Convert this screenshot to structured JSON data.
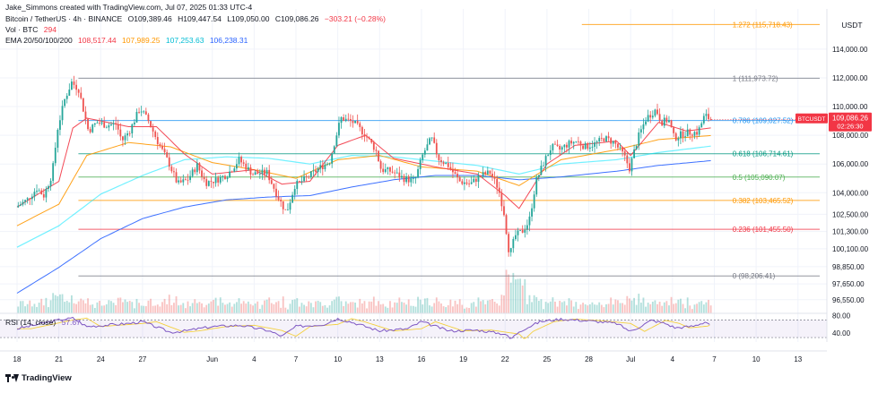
{
  "attribution": "Jake_Simmons created with TradingView.com, Jul 07, 2025 01:33 UTC-4",
  "header": {
    "symbol": "Bitcoin / TetherUS · 4h · BINANCE",
    "open": "O109,389.46",
    "high": "H109,447.54",
    "low": "L109,050.00",
    "close": "C109,086.26",
    "change": "−303.21 (−0.28%)",
    "volume_label": "Vol · BTC",
    "volume_value": "294",
    "ema_label": "EMA 20/50/100/200",
    "ema20": "108,517.44",
    "ema50": "107,989.25",
    "ema100": "107,253.63",
    "ema200": "106,238.31"
  },
  "colors": {
    "up": "#26a69a",
    "down": "#ef5350",
    "ema20": "#f23645",
    "ema50": "#ff9800",
    "ema100": "#00e5ff",
    "ema200": "#2962ff",
    "rsi": "#7e57c2",
    "rsi_ma": "#f4d03f",
    "price_badge": "#f23645"
  },
  "chart_data": [
    {
      "type": "candlestick",
      "title": "Bitcoin / TetherUS · 4h · BINANCE",
      "price_scale_currency": "USDT",
      "ylim": [
        95600,
        116800
      ],
      "y_ticks": [
        "114,000.00",
        "112,000.00",
        "110,000.00",
        "108,000.00",
        "106,000.00",
        "104,000.00",
        "102,500.00",
        "101,300.00",
        "100,100.00",
        "98,850.00",
        "97,650.00",
        "96,550.00"
      ],
      "y_tick_values": [
        114000,
        112000,
        110000,
        108000,
        106000,
        104000,
        102500,
        101300,
        100100,
        98850,
        97650,
        96550
      ],
      "x_tick_labels": [
        "18",
        "21",
        "24",
        "27",
        "Jun",
        "4",
        "7",
        "10",
        "13",
        "16",
        "19",
        "22",
        "25",
        "28",
        "Jul",
        "4",
        "7",
        "10",
        "13"
      ],
      "x_tick_days": [
        0,
        3,
        6,
        9,
        14,
        17,
        20,
        23,
        26,
        29,
        32,
        35,
        38,
        41,
        44,
        47,
        50,
        53,
        56
      ],
      "x_days_start": "2025-05-18",
      "waypoints": [
        [
          0,
          103000
        ],
        [
          0.8,
          103500
        ],
        [
          1.5,
          104300
        ],
        [
          2.0,
          103800
        ],
        [
          2.6,
          105300
        ],
        [
          3.0,
          108500
        ],
        [
          3.5,
          110500
        ],
        [
          4.0,
          111700
        ],
        [
          4.5,
          111200
        ],
        [
          5.2,
          108300
        ],
        [
          5.8,
          108900
        ],
        [
          6.5,
          108700
        ],
        [
          7.2,
          108800
        ],
        [
          7.6,
          107600
        ],
        [
          8.2,
          108400
        ],
        [
          8.9,
          109900
        ],
        [
          9.5,
          109000
        ],
        [
          10.2,
          107500
        ],
        [
          11.0,
          106000
        ],
        [
          11.6,
          104600
        ],
        [
          12.3,
          104900
        ],
        [
          13.0,
          105900
        ],
        [
          13.6,
          104700
        ],
        [
          14.4,
          104900
        ],
        [
          15.2,
          105300
        ],
        [
          16.0,
          106300
        ],
        [
          17.0,
          105300
        ],
        [
          18.0,
          105400
        ],
        [
          18.8,
          103700
        ],
        [
          19.4,
          102600
        ],
        [
          20.0,
          104500
        ],
        [
          20.8,
          105000
        ],
        [
          21.6,
          105600
        ],
        [
          22.5,
          106200
        ],
        [
          23.3,
          109200
        ],
        [
          24.2,
          108900
        ],
        [
          25.0,
          108100
        ],
        [
          25.8,
          107000
        ],
        [
          26.2,
          105600
        ],
        [
          26.9,
          105500
        ],
        [
          27.8,
          105000
        ],
        [
          28.6,
          104800
        ],
        [
          29.2,
          106700
        ],
        [
          29.8,
          107800
        ],
        [
          30.3,
          106400
        ],
        [
          31.0,
          105900
        ],
        [
          31.8,
          104800
        ],
        [
          32.6,
          104600
        ],
        [
          33.3,
          105200
        ],
        [
          34.0,
          105400
        ],
        [
          34.6,
          104300
        ],
        [
          35.0,
          102600
        ],
        [
          35.4,
          99600
        ],
        [
          35.8,
          101000
        ],
        [
          36.3,
          101300
        ],
        [
          36.8,
          102000
        ],
        [
          37.3,
          104800
        ],
        [
          37.8,
          106000
        ],
        [
          38.4,
          107200
        ],
        [
          39.0,
          107000
        ],
        [
          39.6,
          107400
        ],
        [
          40.2,
          107600
        ],
        [
          40.8,
          107200
        ],
        [
          41.5,
          107400
        ],
        [
          42.2,
          107800
        ],
        [
          42.9,
          107500
        ],
        [
          43.6,
          106600
        ],
        [
          44.0,
          105700
        ],
        [
          44.6,
          107800
        ],
        [
          45.2,
          109200
        ],
        [
          45.9,
          109800
        ],
        [
          46.3,
          108900
        ],
        [
          46.8,
          109100
        ],
        [
          47.2,
          107800
        ],
        [
          47.8,
          108100
        ],
        [
          48.3,
          108200
        ],
        [
          48.9,
          108200
        ],
        [
          49.4,
          109400
        ],
        [
          49.8,
          109090
        ]
      ],
      "ema_waypoints": {
        "ema20": [
          [
            0,
            103000
          ],
          [
            3,
            104800
          ],
          [
            4,
            108500
          ],
          [
            5,
            109200
          ],
          [
            8,
            108600
          ],
          [
            10,
            108600
          ],
          [
            12,
            106700
          ],
          [
            14,
            105300
          ],
          [
            17,
            105600
          ],
          [
            19,
            104600
          ],
          [
            21,
            104800
          ],
          [
            23,
            107300
          ],
          [
            25,
            108000
          ],
          [
            27,
            106400
          ],
          [
            30,
            105800
          ],
          [
            33,
            105300
          ],
          [
            35,
            103800
          ],
          [
            36,
            102900
          ],
          [
            38,
            106000
          ],
          [
            40,
            107300
          ],
          [
            43,
            107600
          ],
          [
            44,
            106600
          ],
          [
            46,
            108900
          ],
          [
            48,
            108300
          ],
          [
            49.8,
            108517
          ]
        ],
        "ema50": [
          [
            0,
            101700
          ],
          [
            3,
            103200
          ],
          [
            5,
            106600
          ],
          [
            8,
            107500
          ],
          [
            11,
            107200
          ],
          [
            14,
            106100
          ],
          [
            17,
            105600
          ],
          [
            20,
            105000
          ],
          [
            23,
            106300
          ],
          [
            26,
            106600
          ],
          [
            29,
            105800
          ],
          [
            33,
            105500
          ],
          [
            36,
            104500
          ],
          [
            39,
            106300
          ],
          [
            43,
            107000
          ],
          [
            46,
            107700
          ],
          [
            49.8,
            107989
          ]
        ],
        "ema100": [
          [
            0,
            100200
          ],
          [
            3,
            101700
          ],
          [
            6,
            103900
          ],
          [
            9,
            105200
          ],
          [
            12,
            106300
          ],
          [
            15,
            106500
          ],
          [
            18,
            106400
          ],
          [
            21,
            106000
          ],
          [
            24,
            106600
          ],
          [
            27,
            106500
          ],
          [
            30,
            106200
          ],
          [
            33,
            105900
          ],
          [
            36,
            105300
          ],
          [
            39,
            106000
          ],
          [
            43,
            106300
          ],
          [
            46,
            106800
          ],
          [
            49.8,
            107254
          ]
        ],
        "ema200": [
          [
            0,
            97000
          ],
          [
            3,
            98800
          ],
          [
            6,
            100800
          ],
          [
            9,
            102200
          ],
          [
            12,
            103000
          ],
          [
            15,
            103500
          ],
          [
            18,
            103700
          ],
          [
            21,
            103800
          ],
          [
            24,
            104400
          ],
          [
            27,
            104900
          ],
          [
            30,
            105200
          ],
          [
            33,
            105200
          ],
          [
            36,
            104900
          ],
          [
            39,
            105100
          ],
          [
            43,
            105500
          ],
          [
            46,
            105900
          ],
          [
            49.8,
            106238
          ]
        ]
      },
      "fibonacci_levels": [
        {
          "ratio": "1.272",
          "label": "1.272 (115,718.43)",
          "value": 115718.43,
          "color": "#ff9800"
        },
        {
          "ratio": "1",
          "label": "1 (111,973.72)",
          "value": 111973.72,
          "color": "#787b86"
        },
        {
          "ratio": "0.786",
          "label": "0.786 (109,027.52)",
          "value": 109027.52,
          "color": "#2196f3"
        },
        {
          "ratio": "0.618",
          "label": "0.618 (106,714.61)",
          "value": 106714.61,
          "color": "#089981"
        },
        {
          "ratio": "0.5",
          "label": "0.5 (105,090.07)",
          "value": 105090.07,
          "color": "#4caf50"
        },
        {
          "ratio": "0.382",
          "label": "0.382 (103,465.52)",
          "value": 103465.52,
          "color": "#ff9800"
        },
        {
          "ratio": "0.236",
          "label": "0.236 (101,455.50)",
          "value": 101455.5,
          "color": "#f23645"
        },
        {
          "ratio": "0",
          "label": "0 (98,206.41)",
          "value": 98206.41,
          "color": "#787b86"
        }
      ],
      "last_price": {
        "symbol": "BTCUSDT",
        "price": "109,086.26",
        "countdown": "02:26:30"
      }
    },
    {
      "type": "line",
      "title": "RSI (14, close)",
      "header_value": "57.67",
      "ylim": [
        20,
        85
      ],
      "y_ticks": [
        "80.00",
        "40.00"
      ],
      "y_tick_values": [
        80,
        40
      ],
      "upper_band": 70,
      "lower_band": 30,
      "series": [
        {
          "name": "RSI",
          "points": [
            [
              0,
              50
            ],
            [
              3,
              70
            ],
            [
              4,
              74
            ],
            [
              5,
              55
            ],
            [
              8,
              62
            ],
            [
              9,
              66
            ],
            [
              11,
              42
            ],
            [
              12,
              45
            ],
            [
              14,
              55
            ],
            [
              16,
              58
            ],
            [
              18,
              46
            ],
            [
              19,
              33
            ],
            [
              20,
              55
            ],
            [
              22,
              60
            ],
            [
              23,
              73
            ],
            [
              24,
              65
            ],
            [
              26,
              45
            ],
            [
              28,
              50
            ],
            [
              29,
              66
            ],
            [
              31,
              45
            ],
            [
              33,
              47
            ],
            [
              35,
              38
            ],
            [
              35.4,
              26
            ],
            [
              36,
              44
            ],
            [
              37.5,
              66
            ],
            [
              39,
              72
            ],
            [
              41,
              68
            ],
            [
              43,
              62
            ],
            [
              44,
              44
            ],
            [
              45.5,
              69
            ],
            [
              46.5,
              62
            ],
            [
              47.2,
              52
            ],
            [
              48.5,
              56
            ],
            [
              49.4,
              66
            ],
            [
              49.8,
              57.67
            ]
          ]
        }
      ]
    }
  ],
  "footer": {
    "brand": "TradingView"
  }
}
